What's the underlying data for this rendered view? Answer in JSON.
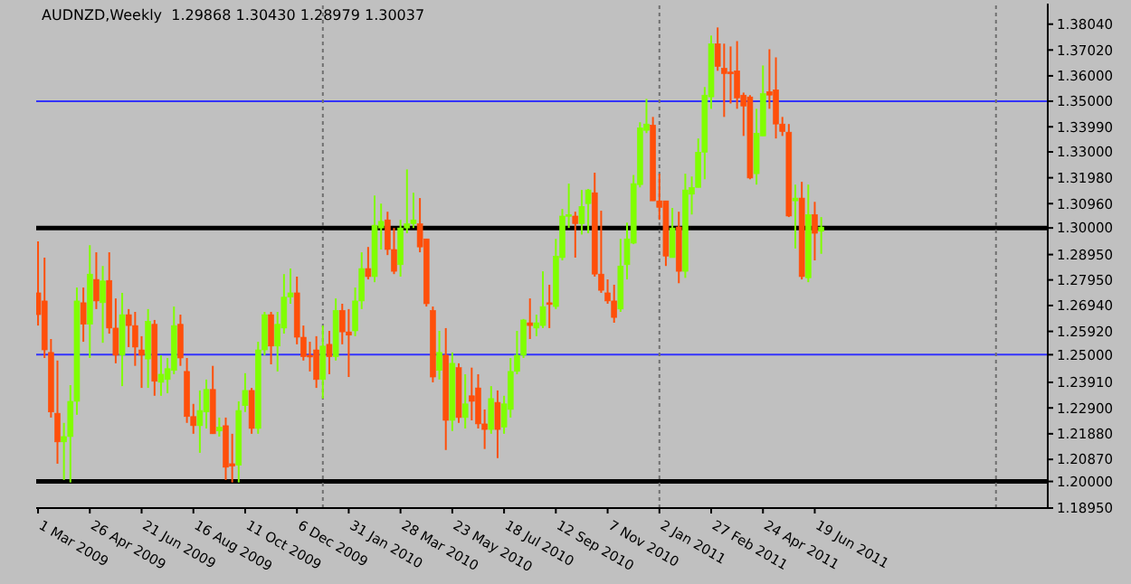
{
  "chart_data": {
    "type": "candlestick",
    "title": "AUDNZD,Weekly  1.29868 1.30430 1.28979 1.30037",
    "xlim": [
      "2009-02-27",
      "2012-02-26"
    ],
    "xticks": [
      {
        "value": "2009-03-01",
        "label": "1 Mar 2009"
      },
      {
        "value": "2009-04-26",
        "label": "26 Apr 2009"
      },
      {
        "value": "2009-06-21",
        "label": "21 Jun 2009"
      },
      {
        "value": "2009-08-16",
        "label": "16 Aug 2009"
      },
      {
        "value": "2009-10-11",
        "label": "11 Oct 2009"
      },
      {
        "value": "2009-12-06",
        "label": "6 Dec 2009"
      },
      {
        "value": "2010-01-31",
        "label": "31 Jan 2010"
      },
      {
        "value": "2010-03-28",
        "label": "28 Mar 2010"
      },
      {
        "value": "2010-05-23",
        "label": "23 May 2010"
      },
      {
        "value": "2010-07-18",
        "label": "18 Jul 2010"
      },
      {
        "value": "2010-09-12",
        "label": "12 Sep 2010"
      },
      {
        "value": "2010-11-07",
        "label": "7 Nov 2010"
      },
      {
        "value": "2011-01-02",
        "label": "2 Jan 2011"
      },
      {
        "value": "2011-02-27",
        "label": "27 Feb 2011"
      },
      {
        "value": "2011-04-24",
        "label": "24 Apr 2011"
      },
      {
        "value": "2011-06-19",
        "label": "19 Jun 2011"
      }
    ],
    "ylim": [
      1.1895,
      1.3885
    ],
    "yticks": [
      {
        "value": 1.3804,
        "label": "1.38040"
      },
      {
        "value": 1.3702,
        "label": "1.37020"
      },
      {
        "value": 1.36,
        "label": "1.36000"
      },
      {
        "value": 1.35,
        "label": "1.35000"
      },
      {
        "value": 1.3399,
        "label": "1.33990"
      },
      {
        "value": 1.33,
        "label": "1.33000"
      },
      {
        "value": 1.3198,
        "label": "1.31980"
      },
      {
        "value": 1.3096,
        "label": "1.30960"
      },
      {
        "value": 1.3,
        "label": "1.30000"
      },
      {
        "value": 1.2895,
        "label": "1.28950"
      },
      {
        "value": 1.2795,
        "label": "1.27950"
      },
      {
        "value": 1.2694,
        "label": "1.26940"
      },
      {
        "value": 1.2592,
        "label": "1.25920"
      },
      {
        "value": 1.25,
        "label": "1.25000"
      },
      {
        "value": 1.2391,
        "label": "1.23910"
      },
      {
        "value": 1.229,
        "label": "1.22900"
      },
      {
        "value": 1.2188,
        "label": "1.21880"
      },
      {
        "value": 1.2087,
        "label": "1.20870"
      },
      {
        "value": 1.2,
        "label": "1.20000"
      },
      {
        "value": 1.1895,
        "label": "1.18950"
      }
    ],
    "ref_lines": [
      {
        "axis": "y",
        "value": 1.35,
        "color": "#3333ff"
      },
      {
        "axis": "y",
        "value": 1.3,
        "color": "#000000"
      },
      {
        "axis": "y",
        "value": 1.25,
        "color": "#3333ff"
      },
      {
        "axis": "y",
        "value": 1.2,
        "color": "#000000"
      },
      {
        "axis": "x",
        "value": "2010-01-03",
        "color": "#707070",
        "line_style": "dotted"
      },
      {
        "axis": "x",
        "value": "2011-01-02",
        "color": "#707070",
        "line_style": "dotted"
      },
      {
        "axis": "x",
        "value": "2012-01-01",
        "color": "#707070",
        "line_style": "dotted"
      }
    ],
    "series": [
      {
        "color": "#80ff00",
        "x": [
          "2009-03-29",
          "2009-04-05",
          "2009-04-12",
          "2009-04-26",
          "2009-05-10",
          "2009-05-31",
          "2009-06-28",
          "2009-07-12",
          "2009-07-19",
          "2009-07-26",
          "2009-08-23",
          "2009-08-30",
          "2009-09-13",
          "2009-10-04",
          "2009-10-11",
          "2009-10-25",
          "2009-11-01",
          "2009-11-15",
          "2009-11-22",
          "2009-11-29",
          "2010-01-03",
          "2010-01-17",
          "2010-02-07",
          "2010-02-14",
          "2010-02-28",
          "2010-03-07",
          "2010-03-28",
          "2010-04-04",
          "2010-04-11",
          "2010-05-09",
          "2010-05-23",
          "2010-06-06",
          "2010-07-04",
          "2010-07-18",
          "2010-07-25",
          "2010-08-01",
          "2010-08-08",
          "2010-08-22",
          "2010-08-29",
          "2010-09-12",
          "2010-09-19",
          "2010-09-26",
          "2010-10-10",
          "2010-10-17",
          "2010-11-21",
          "2010-11-28",
          "2010-12-05",
          "2010-12-12",
          "2010-12-19",
          "2011-01-16",
          "2011-01-30",
          "2011-02-06",
          "2011-02-13",
          "2011-02-20",
          "2011-02-27",
          "2011-04-17",
          "2011-04-24",
          "2011-05-29",
          "2011-06-12",
          "2011-06-26"
        ],
        "ohlc": [
          [
            1.2156,
            1.2231,
            1.2006,
            1.2177
          ],
          [
            1.2177,
            1.238,
            1.1996,
            1.2316
          ],
          [
            1.2316,
            1.2765,
            1.2263,
            1.2712
          ],
          [
            1.262,
            1.2932,
            1.2487,
            1.2818
          ],
          [
            1.2705,
            1.285,
            1.2547,
            1.2791
          ],
          [
            1.2498,
            1.2744,
            1.2376,
            1.2658
          ],
          [
            1.2483,
            1.268,
            1.2369,
            1.2632
          ],
          [
            1.2391,
            1.2498,
            1.2338,
            1.2423
          ],
          [
            1.2402,
            1.2487,
            1.2348,
            1.2445
          ],
          [
            1.2438,
            1.269,
            1.2423,
            1.2615
          ],
          [
            1.222,
            1.2359,
            1.2113,
            1.228
          ],
          [
            1.2274,
            1.2402,
            1.2209,
            1.2363
          ],
          [
            1.2199,
            1.2252,
            1.2177,
            1.2214
          ],
          [
            1.2064,
            1.2316,
            1.1996,
            1.228
          ],
          [
            1.2299,
            1.2427,
            1.2274,
            1.2359
          ],
          [
            1.2209,
            1.2551,
            1.2188,
            1.2519
          ],
          [
            1.2519,
            1.2669,
            1.2498,
            1.2658
          ],
          [
            1.2534,
            1.2669,
            1.2434,
            1.262
          ],
          [
            1.2605,
            1.2818,
            1.2583,
            1.2727
          ],
          [
            1.2727,
            1.284,
            1.2701,
            1.2744
          ],
          [
            1.2402,
            1.2615,
            1.2327,
            1.2534
          ],
          [
            1.2492,
            1.2722,
            1.2477,
            1.2675
          ],
          [
            1.2594,
            1.2765,
            1.2573,
            1.2712
          ],
          [
            1.2712,
            1.2904,
            1.268,
            1.284
          ],
          [
            1.2808,
            1.3128,
            1.2786,
            1.3011
          ],
          [
            1.3,
            1.3096,
            1.2915,
            1.3026
          ],
          [
            1.2855,
            1.3032,
            1.2808,
            1.3
          ],
          [
            1.3,
            1.3231,
            1.2979,
            1.3017
          ],
          [
            1.3017,
            1.3139,
            1.3,
            1.3032
          ],
          [
            1.2438,
            1.2594,
            1.2402,
            1.2509
          ],
          [
            1.2241,
            1.2509,
            1.2199,
            1.2466
          ],
          [
            1.2252,
            1.2423,
            1.2209,
            1.2306
          ],
          [
            1.2205,
            1.2376,
            1.2188,
            1.2327
          ],
          [
            1.2214,
            1.2338,
            1.2188,
            1.2306
          ],
          [
            1.2284,
            1.2487,
            1.2252,
            1.2434
          ],
          [
            1.2434,
            1.2594,
            1.2423,
            1.2498
          ],
          [
            1.2498,
            1.2641,
            1.2487,
            1.2637
          ],
          [
            1.2605,
            1.2658,
            1.2573,
            1.2626
          ],
          [
            1.2615,
            1.2829,
            1.2605,
            1.269
          ],
          [
            1.269,
            1.2957,
            1.268,
            1.2889
          ],
          [
            1.2883,
            1.3075,
            1.2872,
            1.3047
          ],
          [
            1.3047,
            1.3175,
            1.3,
            1.3053
          ],
          [
            1.3017,
            1.315,
            1.2974,
            1.3085
          ],
          [
            1.3096,
            1.3154,
            1.2979,
            1.315
          ],
          [
            1.268,
            1.2957,
            1.2669,
            1.285
          ],
          [
            1.2855,
            1.3021,
            1.2797,
            1.2957
          ],
          [
            1.294,
            1.3209,
            1.2936,
            1.3175
          ],
          [
            1.3171,
            1.3417,
            1.316,
            1.3395
          ],
          [
            1.3385,
            1.3509,
            1.3374,
            1.341
          ],
          [
            1.2883,
            1.3079,
            1.2883,
            1.3
          ],
          [
            1.2829,
            1.3214,
            1.2803,
            1.315
          ],
          [
            1.3133,
            1.3203,
            1.3053,
            1.316
          ],
          [
            1.316,
            1.3353,
            1.316,
            1.3299
          ],
          [
            1.3299,
            1.3556,
            1.3192,
            1.3524
          ],
          [
            1.3517,
            1.3759,
            1.347,
            1.3727
          ],
          [
            1.3214,
            1.347,
            1.3171,
            1.3374
          ],
          [
            1.3363,
            1.3641,
            1.3363,
            1.353
          ],
          [
            1.3107,
            1.3171,
            1.2919,
            1.3118
          ],
          [
            1.2803,
            1.3171,
            1.2786,
            1.3053
          ],
          [
            1.29868,
            1.3043,
            1.28979,
            1.30037
          ]
        ]
      },
      {
        "color": "#ff4f0a",
        "x": [
          "2009-03-01",
          "2009-03-08",
          "2009-03-15",
          "2009-03-22",
          "2009-04-19",
          "2009-05-03",
          "2009-05-17",
          "2009-05-24",
          "2009-06-07",
          "2009-06-14",
          "2009-06-21",
          "2009-07-05",
          "2009-08-02",
          "2009-08-09",
          "2009-08-16",
          "2009-09-06",
          "2009-09-20",
          "2009-09-27",
          "2009-10-18",
          "2009-11-08",
          "2009-12-06",
          "2009-12-13",
          "2009-12-20",
          "2009-12-27",
          "2010-01-10",
          "2010-01-24",
          "2010-01-31",
          "2010-02-21",
          "2010-03-14",
          "2010-03-21",
          "2010-04-18",
          "2010-04-25",
          "2010-05-02",
          "2010-05-16",
          "2010-05-30",
          "2010-06-13",
          "2010-06-20",
          "2010-06-27",
          "2010-07-11",
          "2010-08-15",
          "2010-09-05",
          "2010-10-03",
          "2010-10-24",
          "2010-10-31",
          "2010-11-07",
          "2010-11-14",
          "2010-12-26",
          "2011-01-02",
          "2011-01-09",
          "2011-01-23",
          "2011-03-06",
          "2011-03-13",
          "2011-03-20",
          "2011-03-27",
          "2011-04-03",
          "2011-04-10",
          "2011-05-01",
          "2011-05-08",
          "2011-05-15",
          "2011-05-22",
          "2011-06-05",
          "2011-06-19"
        ],
        "ohlc": [
          [
            1.2744,
            1.2947,
            1.2615,
            1.2658
          ],
          [
            1.2712,
            1.2883,
            1.2487,
            1.2519
          ],
          [
            1.2509,
            1.2562,
            1.2252,
            1.2274
          ],
          [
            1.2269,
            1.2477,
            1.207,
            1.2156
          ],
          [
            1.2705,
            1.2765,
            1.2551,
            1.262
          ],
          [
            1.2797,
            1.2904,
            1.268,
            1.2712
          ],
          [
            1.2793,
            1.2904,
            1.2583,
            1.2605
          ],
          [
            1.2605,
            1.2722,
            1.2466,
            1.2498
          ],
          [
            1.2658,
            1.268,
            1.253,
            1.2615
          ],
          [
            1.2615,
            1.2669,
            1.2456,
            1.253
          ],
          [
            1.2519,
            1.2573,
            1.2369,
            1.2498
          ],
          [
            1.262,
            1.2637,
            1.2338,
            1.2395
          ],
          [
            1.262,
            1.2658,
            1.2456,
            1.2487
          ],
          [
            1.2434,
            1.2487,
            1.2231,
            1.2256
          ],
          [
            1.2256,
            1.2306,
            1.2188,
            1.222
          ],
          [
            1.2363,
            1.2456,
            1.2188,
            1.2188
          ],
          [
            1.222,
            1.2252,
            1.2006,
            1.2056
          ],
          [
            1.207,
            1.2188,
            1.1996,
            1.206
          ],
          [
            1.2359,
            1.2369,
            1.2188,
            1.2209
          ],
          [
            1.2658,
            1.2669,
            1.2462,
            1.2534
          ],
          [
            1.2744,
            1.2808,
            1.2541,
            1.2569
          ],
          [
            1.2569,
            1.2615,
            1.2477,
            1.2492
          ],
          [
            1.2498,
            1.2551,
            1.2434,
            1.2492
          ],
          [
            1.2519,
            1.2573,
            1.2369,
            1.2402
          ],
          [
            1.2541,
            1.2594,
            1.2423,
            1.2492
          ],
          [
            1.2675,
            1.2701,
            1.2541,
            1.259
          ],
          [
            1.259,
            1.268,
            1.2412,
            1.2577
          ],
          [
            1.284,
            1.2925,
            1.2797,
            1.2808
          ],
          [
            1.3032,
            1.3064,
            1.2893,
            1.2915
          ],
          [
            1.2915,
            1.3,
            1.2818,
            1.2829
          ],
          [
            1.3017,
            1.3118,
            1.2904,
            1.2925
          ],
          [
            1.2957,
            1.2957,
            1.269,
            1.2701
          ],
          [
            1.2675,
            1.269,
            1.2391,
            1.2412
          ],
          [
            1.2498,
            1.2605,
            1.2124,
            1.2241
          ],
          [
            1.2449,
            1.2466,
            1.2231,
            1.2252
          ],
          [
            1.2338,
            1.2449,
            1.2241,
            1.2316
          ],
          [
            1.2369,
            1.2423,
            1.2209,
            1.2227
          ],
          [
            1.2227,
            1.2284,
            1.2128,
            1.2205
          ],
          [
            1.2312,
            1.2359,
            1.2092,
            1.2205
          ],
          [
            1.2626,
            1.2722,
            1.2562,
            1.2615
          ],
          [
            1.2705,
            1.2776,
            1.2605,
            1.2701
          ],
          [
            1.3047,
            1.3064,
            1.2883,
            1.3017
          ],
          [
            1.3139,
            1.3218,
            1.2808,
            1.2818
          ],
          [
            1.2818,
            1.3068,
            1.2744,
            1.2754
          ],
          [
            1.2744,
            1.2797,
            1.2701,
            1.2712
          ],
          [
            1.2712,
            1.2776,
            1.2626,
            1.2647
          ],
          [
            1.3406,
            1.3438,
            1.3107,
            1.3107
          ],
          [
            1.3107,
            1.3214,
            1.3032,
            1.3081
          ],
          [
            1.3107,
            1.3107,
            1.285,
            1.2889
          ],
          [
            1.3004,
            1.3064,
            1.2782,
            1.2829
          ],
          [
            1.3727,
            1.3791,
            1.362,
            1.3637
          ],
          [
            1.363,
            1.3727,
            1.3438,
            1.3609
          ],
          [
            1.3615,
            1.3716,
            1.3491,
            1.3609
          ],
          [
            1.362,
            1.3737,
            1.347,
            1.3513
          ],
          [
            1.3524,
            1.3534,
            1.3363,
            1.3481
          ],
          [
            1.3517,
            1.3524,
            1.3192,
            1.3197
          ],
          [
            1.3538,
            1.3705,
            1.347,
            1.3524
          ],
          [
            1.3545,
            1.3673,
            1.3353,
            1.341
          ],
          [
            1.341,
            1.3438,
            1.3363,
            1.338
          ],
          [
            1.3378,
            1.341,
            1.3043,
            1.3047
          ],
          [
            1.3118,
            1.3182,
            1.2797,
            1.2808
          ],
          [
            1.3053,
            1.3103,
            1.2872,
            1.2979
          ]
        ]
      }
    ]
  }
}
